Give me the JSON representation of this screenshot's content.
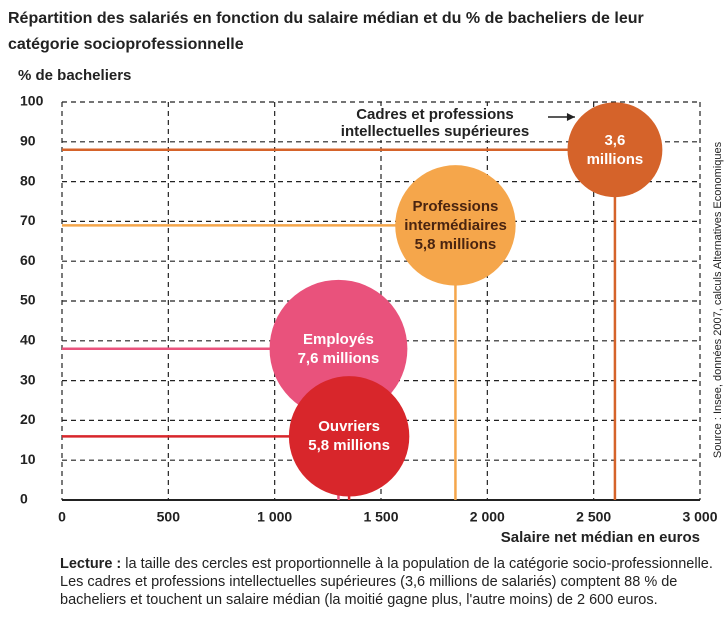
{
  "chart_data": {
    "type": "bubble",
    "title": "Répartition des salariés en fonction du salaire médian et du % de bacheliers de leur catégorie socioprofessionnelle",
    "y_label": "% de bacheliers",
    "x_label": "Salaire net médian en euros",
    "annotation": "Cadres et professions intellectuelles supérieures",
    "xlim": [
      0,
      3000
    ],
    "xticks": [
      0,
      500,
      {
        "value": 1000,
        "label": "1 000"
      },
      {
        "value": 1500,
        "label": "1 500"
      },
      {
        "value": 2000,
        "label": "2 000"
      },
      {
        "value": 2500,
        "label": "2 500"
      },
      {
        "value": 3000,
        "label": "3 000"
      }
    ],
    "ylim": [
      0,
      100
    ],
    "yticks": [
      0,
      10,
      20,
      30,
      40,
      50,
      60,
      70,
      80,
      90,
      100
    ],
    "grid": true,
    "series": [
      {
        "name": "Employés",
        "color": "#e9527c",
        "x": [
          1300
        ],
        "values": [
          38
        ],
        "sizes": [
          7.6
        ],
        "size_labels": [
          "7,6 millions"
        ]
      },
      {
        "name": "Ouvriers",
        "color": "#d8262b",
        "x": [
          1350
        ],
        "values": [
          16
        ],
        "sizes": [
          5.8
        ],
        "size_labels": [
          "5,8 millions"
        ]
      },
      {
        "name": "Professions intermédiaires",
        "color": "#f5a64b",
        "x": [
          1850
        ],
        "values": [
          69
        ],
        "sizes": [
          5.8
        ],
        "size_labels": [
          "5,8 millions"
        ]
      },
      {
        "name": "Cadres et professions intellectuelles supérieures",
        "color": "#d5632a",
        "x": [
          2600
        ],
        "values": [
          88
        ],
        "sizes": [
          3.6
        ],
        "size_labels": [
          "3,6 millions"
        ]
      }
    ]
  },
  "source": "Source : Insee, données 2007, calculs Alternatives Economiques",
  "caption": {
    "label": "Lecture :",
    "text": "la taille des cercles est proportionnelle à la population de la catégorie socio-professionnelle. Les cadres et professions intellectuelles supérieures (3,6 millions de salariés) comptent 88 % de bacheliers et touchent un salaire médian (la moitié gagne plus, l'autre moins) de 2 600 euros."
  }
}
